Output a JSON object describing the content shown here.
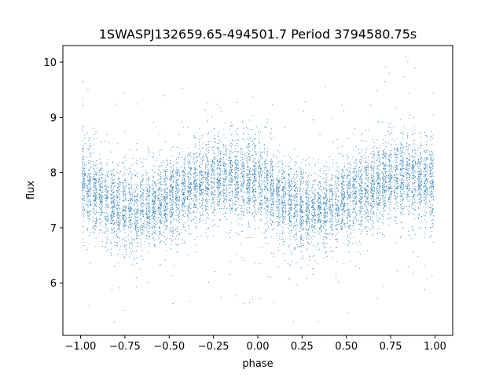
{
  "chart_data": {
    "type": "scatter",
    "title": "1SWASPJ132659.65-494501.7 Period 3794580.75s",
    "xlabel": "phase",
    "ylabel": "flux",
    "xlim": [
      -1.1,
      1.1
    ],
    "ylim": [
      5.05,
      10.3
    ],
    "xticks": [
      -1.0,
      -0.75,
      -0.5,
      -0.25,
      0.0,
      0.25,
      0.5,
      0.75,
      1.0
    ],
    "xtick_labels": [
      "−1.00",
      "−0.75",
      "−0.50",
      "−0.25",
      "0.00",
      "0.25",
      "0.50",
      "0.75",
      "1.00"
    ],
    "yticks": [
      6,
      7,
      8,
      9,
      10
    ],
    "ytick_labels": [
      "6",
      "7",
      "8",
      "9",
      "10"
    ],
    "grid": false,
    "point_color": "#1f77b4",
    "profile": {
      "phase": [
        0.0,
        0.05,
        0.1,
        0.15,
        0.2,
        0.25,
        0.3,
        0.35,
        0.4,
        0.45,
        0.5,
        0.55,
        0.6,
        0.65,
        0.7,
        0.75,
        0.8,
        0.85,
        0.9,
        0.95,
        1.0
      ],
      "median_flux": [
        7.85,
        7.75,
        7.6,
        7.5,
        7.4,
        7.35,
        7.3,
        7.35,
        7.4,
        7.45,
        7.55,
        7.6,
        7.7,
        7.75,
        7.85,
        7.9,
        7.95,
        7.95,
        7.9,
        7.85,
        7.85
      ],
      "spread": 0.35,
      "flux_min": 5.3,
      "flux_max": 10.1
    }
  }
}
